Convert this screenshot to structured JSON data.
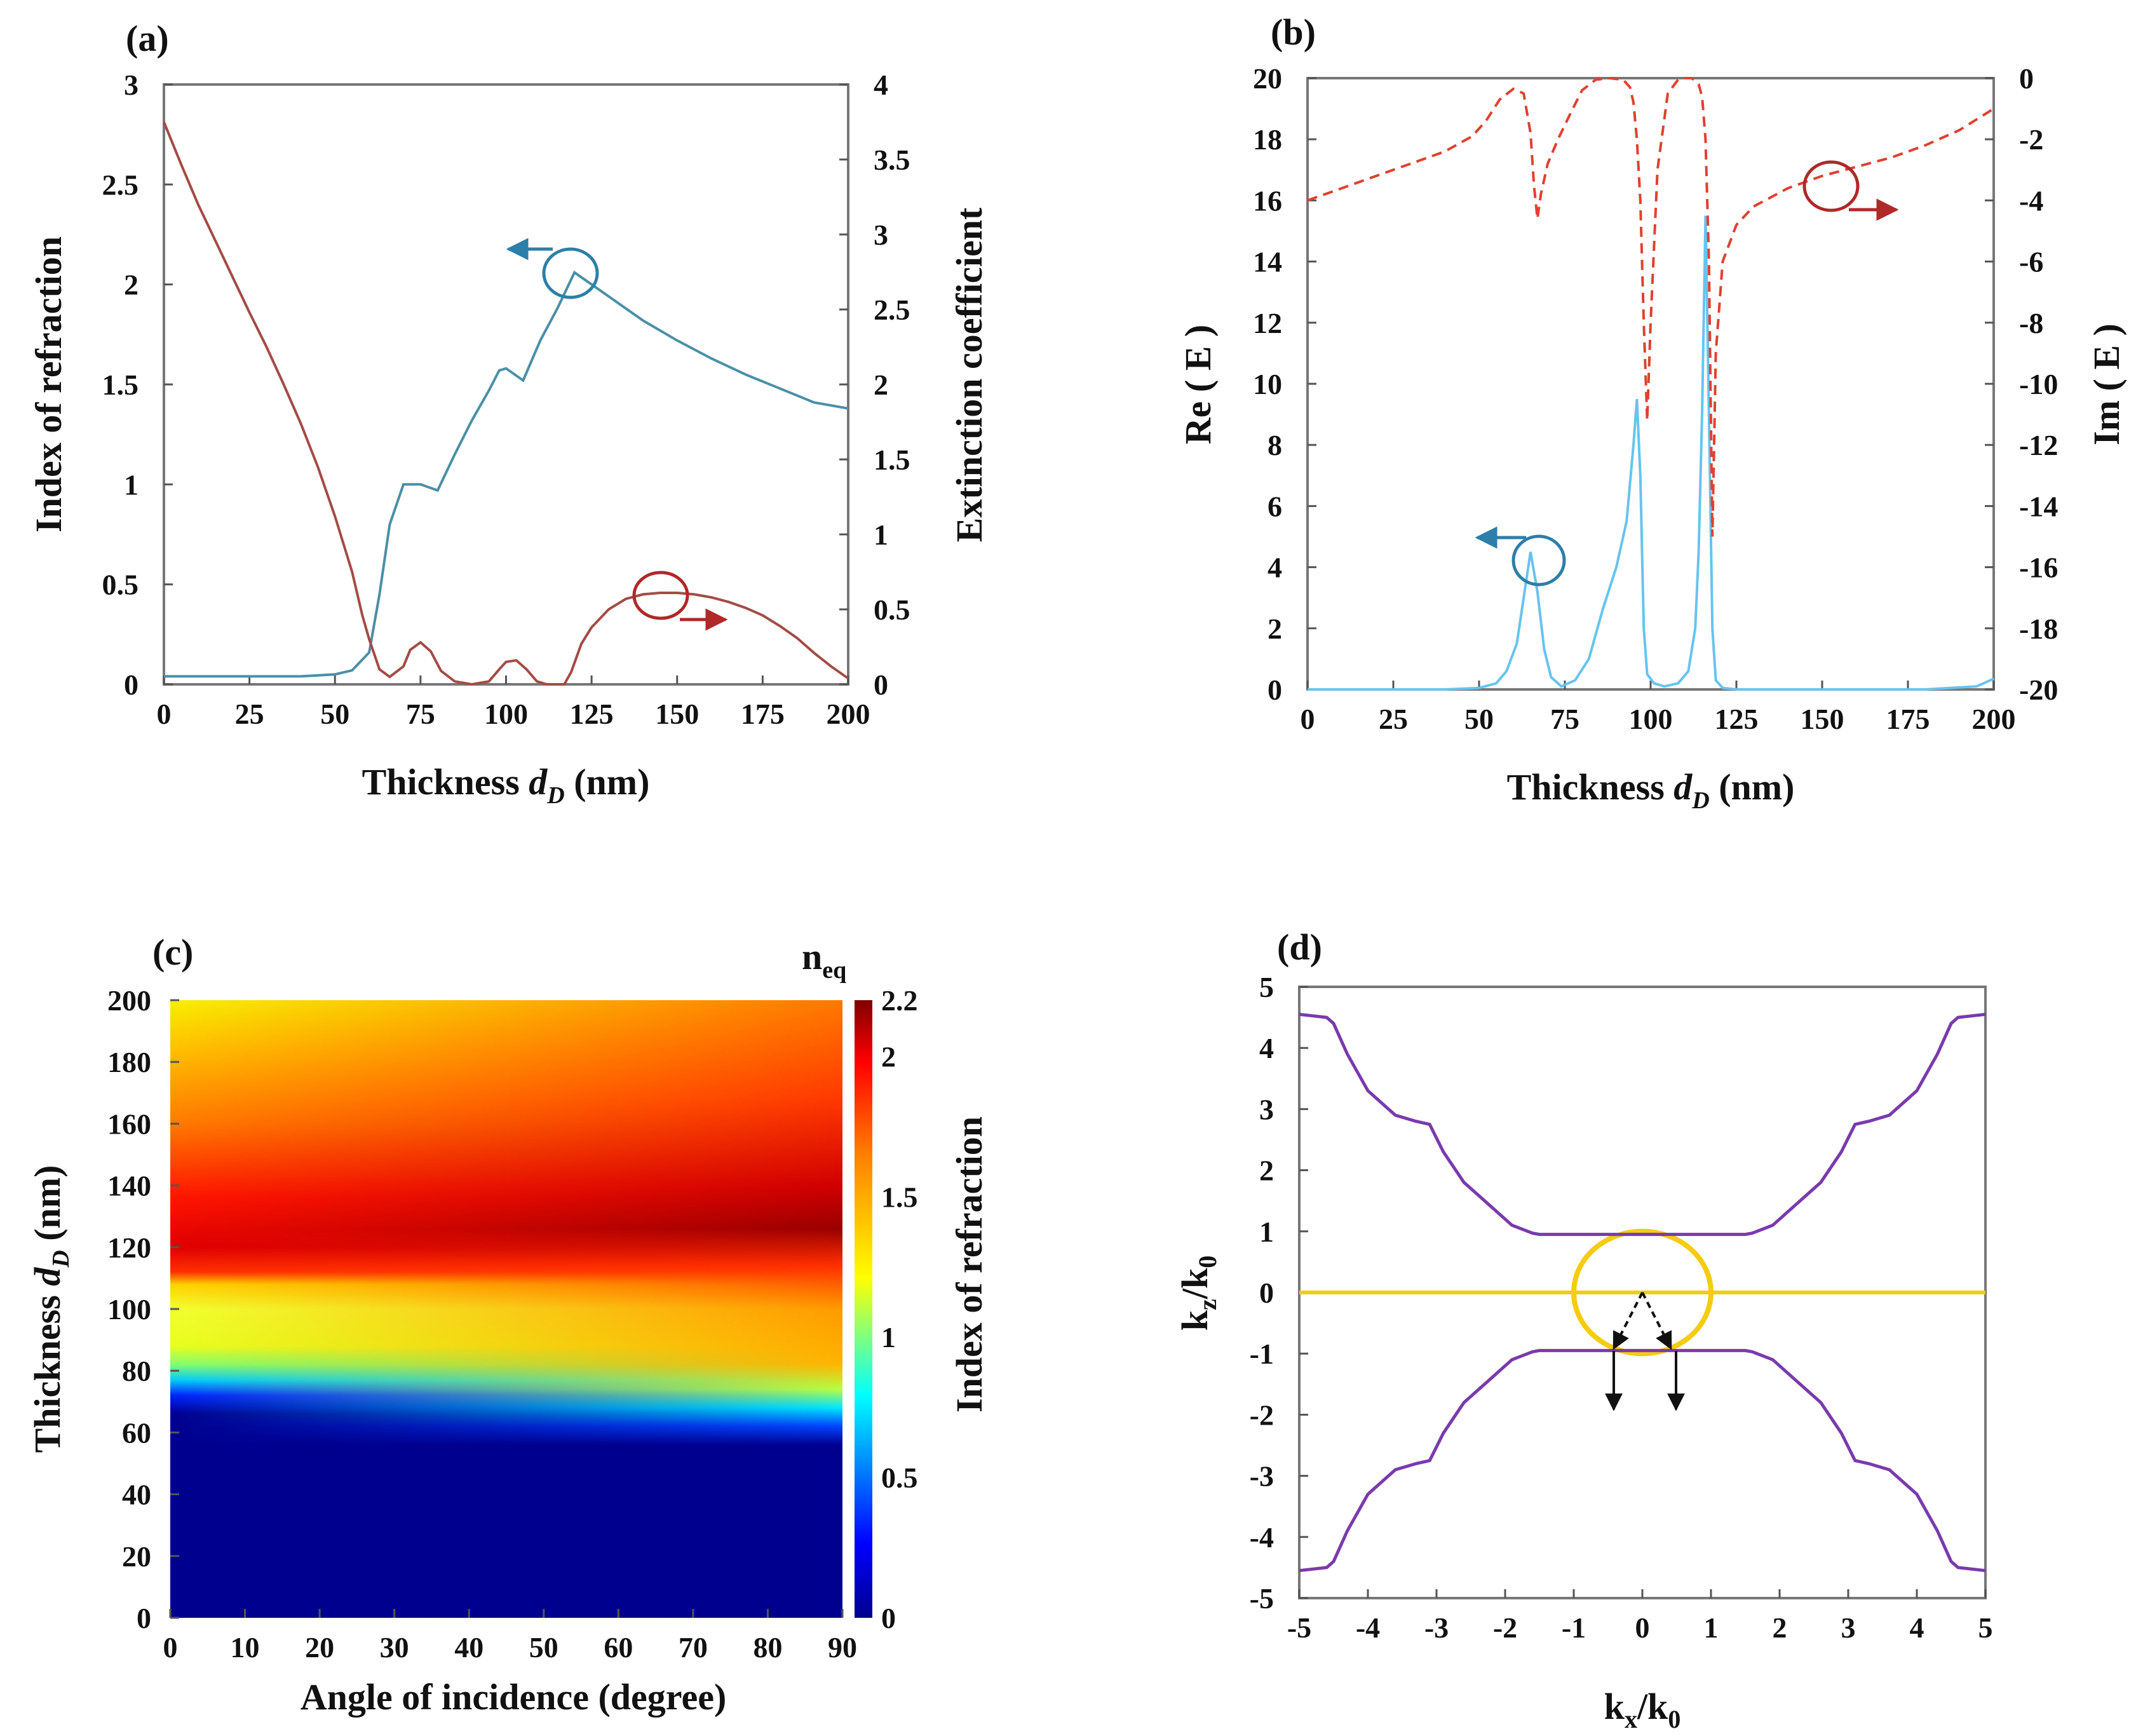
{
  "colors": {
    "a_n": "#4a8fa6",
    "a_k": "#a34b45",
    "b_re": "#66c4ee",
    "b_im": "#e04030",
    "d_purple": "#7a3aad",
    "d_yellow": "#f5cc10",
    "arrow_blue": "#2c7fa8",
    "arrow_red": "#b02828"
  },
  "chart_data": [
    {
      "panel": "(a)",
      "type": "line",
      "xlabel": "Thickness",
      "xlabel_var": "d",
      "xlabel_sub": "D",
      "xlabel_unit": "(nm)",
      "ylabel": "Index of refraction",
      "y2label": "Extinction coefficient",
      "xlim": [
        0,
        200
      ],
      "ylim": [
        0,
        3
      ],
      "y2lim": [
        0,
        4
      ],
      "xticks": [
        "0",
        "25",
        "50",
        "75",
        "100",
        "125",
        "150",
        "175",
        "200"
      ],
      "yticks": [
        "0",
        "0.5",
        "1",
        "1.5",
        "2",
        "2.5",
        "3"
      ],
      "y2ticks": [
        "0",
        "0.5",
        "1",
        "1.5",
        "2",
        "2.5",
        "3",
        "3.5",
        "4"
      ],
      "series": [
        {
          "name": "Index of refraction",
          "axis": "left",
          "x": [
            0,
            10,
            20,
            30,
            40,
            50,
            55,
            60,
            63,
            66,
            70,
            75,
            80,
            85,
            90,
            95,
            98,
            100,
            105,
            110,
            115,
            120,
            130,
            140,
            150,
            160,
            170,
            180,
            190,
            200
          ],
          "y": [
            0.04,
            0.04,
            0.04,
            0.04,
            0.04,
            0.05,
            0.07,
            0.16,
            0.45,
            0.8,
            1.0,
            1.0,
            0.97,
            1.15,
            1.32,
            1.47,
            1.57,
            1.58,
            1.52,
            1.72,
            1.88,
            2.06,
            1.94,
            1.82,
            1.72,
            1.63,
            1.55,
            1.48,
            1.41,
            1.38
          ]
        },
        {
          "name": "Extinction coefficient",
          "axis": "right",
          "x": [
            0,
            5,
            10,
            15,
            20,
            25,
            30,
            35,
            40,
            45,
            50,
            55,
            58,
            60,
            63,
            66,
            70,
            72,
            75,
            78,
            81,
            85,
            90,
            95,
            98,
            100,
            103,
            106,
            109,
            112,
            115,
            117,
            119,
            122,
            125,
            130,
            135,
            140,
            145,
            150,
            155,
            160,
            165,
            170,
            175,
            180,
            185,
            190,
            195,
            200
          ],
          "y": [
            3.75,
            3.47,
            3.2,
            2.96,
            2.72,
            2.48,
            2.25,
            2.0,
            1.74,
            1.45,
            1.12,
            0.75,
            0.46,
            0.3,
            0.1,
            0.05,
            0.12,
            0.23,
            0.28,
            0.22,
            0.09,
            0.02,
            0.0,
            0.02,
            0.1,
            0.15,
            0.16,
            0.1,
            0.02,
            0.0,
            0.0,
            0.0,
            0.08,
            0.27,
            0.38,
            0.5,
            0.57,
            0.6,
            0.61,
            0.61,
            0.6,
            0.58,
            0.55,
            0.51,
            0.46,
            0.39,
            0.31,
            0.21,
            0.12,
            0.04
          ]
        }
      ]
    },
    {
      "panel": "(b)",
      "type": "line",
      "xlabel": "Thickness",
      "xlabel_var": "d",
      "xlabel_sub": "D",
      "xlabel_unit": "(nm)",
      "ylabel": "Re ( E )",
      "y2label": "Im ( E )",
      "xlim": [
        0,
        200
      ],
      "ylim": [
        0,
        20
      ],
      "y2lim": [
        -20,
        0
      ],
      "xticks": [
        "0",
        "25",
        "50",
        "75",
        "100",
        "125",
        "150",
        "175",
        "200"
      ],
      "yticks": [
        "0",
        "2",
        "4",
        "6",
        "8",
        "10",
        "12",
        "14",
        "16",
        "18",
        "20"
      ],
      "y2ticks": [
        "-20",
        "-18",
        "-16",
        "-14",
        "-12",
        "-10",
        "-8",
        "-6",
        "-4",
        "-2",
        "0"
      ],
      "series": [
        {
          "name": "Re(E)",
          "axis": "left",
          "x": [
            0,
            40,
            50,
            55,
            58,
            61,
            63,
            65,
            67,
            69,
            71,
            74,
            78,
            82,
            86,
            90,
            93,
            95,
            96,
            97,
            98,
            99,
            101,
            104,
            108,
            111,
            113,
            114,
            115,
            116,
            117,
            118,
            119,
            121,
            125,
            140,
            160,
            180,
            195,
            200
          ],
          "y": [
            0,
            0,
            0.05,
            0.2,
            0.6,
            1.5,
            3.0,
            4.5,
            3.2,
            1.3,
            0.4,
            0.1,
            0.3,
            1.0,
            2.6,
            4.0,
            5.5,
            8.0,
            9.5,
            7.0,
            2.0,
            0.5,
            0.2,
            0.1,
            0.2,
            0.6,
            2.0,
            4.5,
            9.0,
            15.5,
            9.0,
            2.0,
            0.3,
            0.05,
            0,
            0,
            0,
            0,
            0.1,
            0.35
          ]
        },
        {
          "name": "Im(E)",
          "axis": "right",
          "x": [
            0,
            10,
            20,
            30,
            40,
            48,
            52,
            56,
            60,
            63,
            65,
            66,
            67,
            68,
            70,
            73,
            76,
            80,
            84,
            88,
            92,
            94,
            95,
            96,
            97,
            98,
            99,
            100,
            102,
            105,
            108,
            110,
            112,
            114,
            115,
            116,
            117,
            118,
            119,
            121,
            125,
            130,
            140,
            150,
            160,
            170,
            180,
            190,
            200
          ],
          "y": [
            -4.0,
            -3.6,
            -3.2,
            -2.8,
            -2.4,
            -1.9,
            -1.4,
            -0.7,
            -0.35,
            -0.5,
            -1.8,
            -3.5,
            -4.6,
            -3.8,
            -2.8,
            -2.0,
            -1.3,
            -0.4,
            -0.05,
            0.0,
            -0.05,
            -0.3,
            -0.8,
            -2.0,
            -4.0,
            -8.0,
            -11.2,
            -8.0,
            -3.0,
            -0.5,
            -0.05,
            0.0,
            0.0,
            -0.2,
            -0.6,
            -2.0,
            -6.0,
            -15.0,
            -9.0,
            -6.0,
            -4.8,
            -4.2,
            -3.6,
            -3.2,
            -2.9,
            -2.6,
            -2.2,
            -1.7,
            -1.0
          ]
        }
      ]
    },
    {
      "panel": "(c)",
      "type": "heatmap",
      "xlabel": "Angle of incidence (degree)",
      "ylabel": "Thickness",
      "ylabel_var": "d",
      "ylabel_sub": "D",
      "ylabel_unit": "(nm)",
      "colorbar_title": "n",
      "colorbar_title_sub": "eq",
      "colorbar_label": "Index of refraction",
      "xlim": [
        0,
        90
      ],
      "ylim": [
        0,
        200
      ],
      "clim": [
        0,
        2.2
      ],
      "xticks": [
        "0",
        "10",
        "20",
        "30",
        "40",
        "50",
        "60",
        "70",
        "80",
        "90"
      ],
      "yticks": [
        "0",
        "20",
        "40",
        "60",
        "80",
        "100",
        "120",
        "140",
        "160",
        "180",
        "200"
      ],
      "cticks": [
        "0",
        "0.5",
        "1",
        "1.5",
        "2",
        "2.2"
      ],
      "bands_at_0deg": [
        {
          "from": 0,
          "to": 68,
          "value": 0.05
        },
        {
          "from": 72,
          "to": 78,
          "value": 0.7
        },
        {
          "from": 85,
          "to": 108,
          "value": 1.3
        },
        {
          "from": 110,
          "to": 125,
          "value": 2.0
        },
        {
          "from": 135,
          "to": 150,
          "value": 2.1
        },
        {
          "from": 180,
          "to": 200,
          "value": 1.45
        }
      ],
      "bands_at_90deg": [
        {
          "from": 0,
          "to": 57,
          "value": 0.05
        },
        {
          "from": 62,
          "to": 70,
          "value": 0.7
        },
        {
          "from": 82,
          "to": 115,
          "value": 1.6
        },
        {
          "from": 125,
          "to": 135,
          "value": 2.2
        },
        {
          "from": 160,
          "to": 200,
          "value": 1.8
        }
      ]
    },
    {
      "panel": "(d)",
      "type": "line",
      "xlabel": "k",
      "xlabel_sub1": "x",
      "xlabel_mid": "/k",
      "xlabel_sub2": "0",
      "ylabel": "k",
      "ylabel_sub1": "z",
      "ylabel_mid": "/k",
      "ylabel_sub2": "0",
      "xlim": [
        -5,
        5
      ],
      "ylim": [
        -5,
        5
      ],
      "xticks": [
        "-5",
        "-4",
        "-3",
        "-2",
        "-1",
        "0",
        "1",
        "2",
        "3",
        "4",
        "5"
      ],
      "yticks": [
        "-5",
        "-4",
        "-3",
        "-2",
        "-1",
        "0",
        "1",
        "2",
        "3",
        "4",
        "5"
      ],
      "series": [
        {
          "name": "upper band (purple)",
          "x": [
            -5,
            -4.6,
            -4.5,
            -4.3,
            -4.0,
            -3.6,
            -3.3,
            -3.1,
            -2.9,
            -2.6,
            -2.2,
            -1.9,
            -1.6,
            -1.5,
            -1.0,
            0,
            1.0,
            1.5,
            1.6,
            1.9,
            2.2,
            2.6,
            2.9,
            3.1,
            3.3,
            3.6,
            4.0,
            4.3,
            4.5,
            4.6,
            5
          ],
          "y": [
            4.55,
            4.5,
            4.4,
            3.9,
            3.3,
            2.9,
            2.8,
            2.75,
            2.3,
            1.8,
            1.4,
            1.1,
            0.97,
            0.95,
            0.95,
            0.95,
            0.95,
            0.95,
            0.97,
            1.1,
            1.4,
            1.8,
            2.3,
            2.75,
            2.8,
            2.9,
            3.3,
            3.9,
            4.4,
            4.5,
            4.55
          ]
        },
        {
          "name": "lower band (purple)",
          "x": [
            -5,
            -4.6,
            -4.5,
            -4.3,
            -4.0,
            -3.6,
            -3.3,
            -3.1,
            -2.9,
            -2.6,
            -2.2,
            -1.9,
            -1.6,
            -1.5,
            -1.0,
            0,
            1.0,
            1.5,
            1.6,
            1.9,
            2.2,
            2.6,
            2.9,
            3.1,
            3.3,
            3.6,
            4.0,
            4.3,
            4.5,
            4.6,
            5
          ],
          "y": [
            -4.55,
            -4.5,
            -4.4,
            -3.9,
            -3.3,
            -2.9,
            -2.8,
            -2.75,
            -2.3,
            -1.8,
            -1.4,
            -1.1,
            -0.97,
            -0.95,
            -0.95,
            -0.95,
            -0.95,
            -0.95,
            -0.97,
            -1.1,
            -1.4,
            -1.8,
            -2.3,
            -2.75,
            -2.8,
            -2.9,
            -3.3,
            -3.9,
            -4.4,
            -4.5,
            -4.55
          ]
        },
        {
          "name": "axis line (yellow)",
          "x": [
            -5,
            5
          ],
          "y": [
            0,
            0
          ]
        },
        {
          "name": "unit circle (yellow)",
          "circle_radius": 1
        }
      ]
    }
  ]
}
